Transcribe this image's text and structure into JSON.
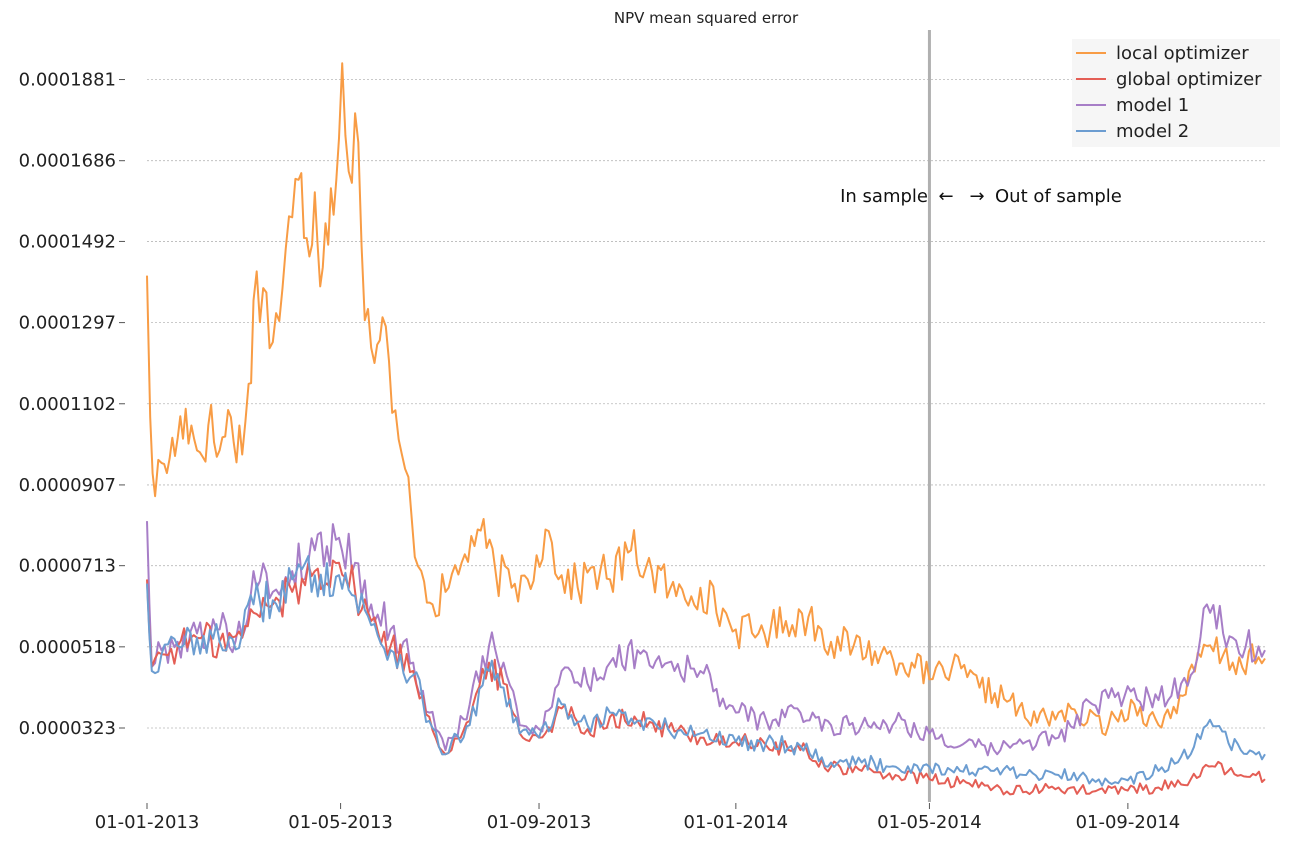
{
  "chart_data": {
    "type": "line",
    "title": "NPV mean squared error",
    "xlabel": "",
    "ylabel": "",
    "x_range": [
      "2013-01-01",
      "2014-11-25"
    ],
    "ylim": [
      1.5e-05,
      0.0002
    ],
    "grid": "horizontal dashed",
    "legend_position": "top-right",
    "x_ticks": [
      {
        "date": "2013-01-01",
        "label": "01-01-2013"
      },
      {
        "date": "2013-05-01",
        "label": "01-05-2013"
      },
      {
        "date": "2013-09-01",
        "label": "01-09-2013"
      },
      {
        "date": "2014-01-01",
        "label": "01-01-2014"
      },
      {
        "date": "2014-05-01",
        "label": "01-05-2014"
      },
      {
        "date": "2014-09-01",
        "label": "01-09-2014"
      }
    ],
    "y_ticks": [
      {
        "value": 3.23e-05,
        "label": "0.0000323"
      },
      {
        "value": 5.18e-05,
        "label": "0.0000518"
      },
      {
        "value": 7.13e-05,
        "label": "0.0000713"
      },
      {
        "value": 9.07e-05,
        "label": "0.0000907"
      },
      {
        "value": 0.0001102,
        "label": "0.0001102"
      },
      {
        "value": 0.0001297,
        "label": "0.0001297"
      },
      {
        "value": 0.0001492,
        "label": "0.0001492"
      },
      {
        "value": 0.0001686,
        "label": "0.0001686"
      },
      {
        "value": 0.0001881,
        "label": "0.0001881"
      }
    ],
    "vline": {
      "date": "2014-05-01",
      "color": "#b0b0b0"
    },
    "annotation": {
      "left": "In sample",
      "left_arrow": "←",
      "right_arrow": "→",
      "right": "Out of sample"
    },
    "series": [
      {
        "name": "local optimizer",
        "color": "#f89c45",
        "points": [
          [
            "2013-01-01",
            0.000141
          ],
          [
            "2013-01-03",
            0.000107
          ],
          [
            "2013-01-06",
            8.8e-05
          ],
          [
            "2013-01-10",
            9.6e-05
          ],
          [
            "2013-01-15",
            9.7e-05
          ],
          [
            "2013-01-20",
            0.000102
          ],
          [
            "2013-01-25",
            0.000109
          ],
          [
            "2013-02-01",
            9.9e-05
          ],
          [
            "2013-02-08",
            0.000105
          ],
          [
            "2013-02-15",
            9.9e-05
          ],
          [
            "2013-02-22",
            0.000107
          ],
          [
            "2013-03-01",
            9.8e-05
          ],
          [
            "2013-03-05",
            0.000115
          ],
          [
            "2013-03-08",
            0.000135
          ],
          [
            "2013-03-14",
            0.000138
          ],
          [
            "2013-03-20",
            0.000125
          ],
          [
            "2013-03-26",
            0.000138
          ],
          [
            "2013-04-01",
            0.000155
          ],
          [
            "2013-04-05",
            0.000164
          ],
          [
            "2013-04-10",
            0.00015
          ],
          [
            "2013-04-15",
            0.000161
          ],
          [
            "2013-04-20",
            0.000143
          ],
          [
            "2013-04-25",
            0.000162
          ],
          [
            "2013-04-30",
            0.000174
          ],
          [
            "2013-05-02",
            0.000192
          ],
          [
            "2013-05-06",
            0.000166
          ],
          [
            "2013-05-10",
            0.00018
          ],
          [
            "2013-05-14",
            0.000148
          ],
          [
            "2013-05-18",
            0.000133
          ],
          [
            "2013-05-22",
            0.00012
          ],
          [
            "2013-05-27",
            0.000131
          ],
          [
            "2013-06-02",
            0.000108
          ],
          [
            "2013-06-08",
            9.8e-05
          ],
          [
            "2013-06-14",
            8.3e-05
          ],
          [
            "2013-06-20",
            7e-05
          ],
          [
            "2013-06-27",
            6.2e-05
          ],
          [
            "2013-07-05",
            6.5e-05
          ],
          [
            "2013-07-15",
            7.2e-05
          ],
          [
            "2013-07-25",
            8e-05
          ],
          [
            "2013-08-05",
            7e-05
          ],
          [
            "2013-08-15",
            6.6e-05
          ],
          [
            "2013-08-25",
            6.8e-05
          ],
          [
            "2013-09-05",
            8e-05
          ],
          [
            "2013-09-15",
            6.9e-05
          ],
          [
            "2013-09-25",
            6.6e-05
          ],
          [
            "2013-10-05",
            7.1e-05
          ],
          [
            "2013-10-15",
            6.8e-05
          ],
          [
            "2013-10-28",
            7.5e-05
          ],
          [
            "2013-11-10",
            7e-05
          ],
          [
            "2013-11-25",
            6.4e-05
          ],
          [
            "2013-12-10",
            6.6e-05
          ],
          [
            "2014-01-01",
            5.6e-05
          ],
          [
            "2014-01-15",
            5.5e-05
          ],
          [
            "2014-02-01",
            5.8e-05
          ],
          [
            "2014-02-15",
            5.9e-05
          ],
          [
            "2014-03-01",
            5.3e-05
          ],
          [
            "2014-03-15",
            5.2e-05
          ],
          [
            "2014-04-01",
            5e-05
          ],
          [
            "2014-04-20",
            4.8e-05
          ],
          [
            "2014-05-01",
            4.4e-05
          ],
          [
            "2014-05-15",
            4.7e-05
          ],
          [
            "2014-06-01",
            4.2e-05
          ],
          [
            "2014-06-20",
            3.9e-05
          ],
          [
            "2014-07-01",
            3.4e-05
          ],
          [
            "2014-07-20",
            3.6e-05
          ],
          [
            "2014-08-01",
            3.5e-05
          ],
          [
            "2014-08-20",
            3.3e-05
          ],
          [
            "2014-09-05",
            3.8e-05
          ],
          [
            "2014-09-20",
            3.3e-05
          ],
          [
            "2014-10-05",
            4e-05
          ],
          [
            "2014-10-20",
            5.2e-05
          ],
          [
            "2014-11-05",
            4.8e-05
          ],
          [
            "2014-11-25",
            4.9e-05
          ]
        ]
      },
      {
        "name": "global optimizer",
        "color": "#e45e55",
        "points": [
          [
            "2013-01-01",
            6.8e-05
          ],
          [
            "2013-01-04",
            4.7e-05
          ],
          [
            "2013-01-10",
            5e-05
          ],
          [
            "2013-01-20",
            5.2e-05
          ],
          [
            "2013-02-01",
            5.4e-05
          ],
          [
            "2013-02-15",
            5.3e-05
          ],
          [
            "2013-03-01",
            5.4e-05
          ],
          [
            "2013-03-08",
            6e-05
          ],
          [
            "2013-03-20",
            6.2e-05
          ],
          [
            "2013-04-01",
            6.5e-05
          ],
          [
            "2013-04-15",
            7e-05
          ],
          [
            "2013-04-30",
            7.2e-05
          ],
          [
            "2013-05-10",
            6.5e-05
          ],
          [
            "2013-05-20",
            5.8e-05
          ],
          [
            "2013-06-01",
            5.2e-05
          ],
          [
            "2013-06-15",
            4.6e-05
          ],
          [
            "2013-06-25",
            3.5e-05
          ],
          [
            "2013-07-05",
            2.6e-05
          ],
          [
            "2013-07-20",
            3.4e-05
          ],
          [
            "2013-08-01",
            4.8e-05
          ],
          [
            "2013-08-10",
            4.3e-05
          ],
          [
            "2013-08-20",
            3.1e-05
          ],
          [
            "2013-09-01",
            3e-05
          ],
          [
            "2013-09-15",
            3.7e-05
          ],
          [
            "2013-10-01",
            3.2e-05
          ],
          [
            "2013-10-15",
            3.5e-05
          ],
          [
            "2013-11-01",
            3.4e-05
          ],
          [
            "2013-11-20",
            3.2e-05
          ],
          [
            "2013-12-10",
            3e-05
          ],
          [
            "2014-01-01",
            2.9e-05
          ],
          [
            "2014-01-20",
            2.8e-05
          ],
          [
            "2014-02-10",
            2.7e-05
          ],
          [
            "2014-03-01",
            2.3e-05
          ],
          [
            "2014-03-20",
            2.2e-05
          ],
          [
            "2014-04-10",
            2.1e-05
          ],
          [
            "2014-05-01",
            2e-05
          ],
          [
            "2014-05-20",
            1.9e-05
          ],
          [
            "2014-06-10",
            1.8e-05
          ],
          [
            "2014-06-30",
            1.7e-05
          ],
          [
            "2014-07-20",
            1.8e-05
          ],
          [
            "2014-08-10",
            1.7e-05
          ],
          [
            "2014-08-30",
            1.75e-05
          ],
          [
            "2014-09-20",
            1.8e-05
          ],
          [
            "2014-10-10",
            2e-05
          ],
          [
            "2014-10-25",
            2.3e-05
          ],
          [
            "2014-11-10",
            2.1e-05
          ],
          [
            "2014-11-25",
            2e-05
          ]
        ]
      },
      {
        "name": "model 1",
        "color": "#a77ec7",
        "points": [
          [
            "2013-01-01",
            8.2e-05
          ],
          [
            "2013-01-04",
            4.7e-05
          ],
          [
            "2013-01-10",
            5.1e-05
          ],
          [
            "2013-01-20",
            5.3e-05
          ],
          [
            "2013-02-01",
            5.5e-05
          ],
          [
            "2013-02-15",
            5.6e-05
          ],
          [
            "2013-03-01",
            5.4e-05
          ],
          [
            "2013-03-08",
            7e-05
          ],
          [
            "2013-03-20",
            6.5e-05
          ],
          [
            "2013-04-01",
            7e-05
          ],
          [
            "2013-04-15",
            7.5e-05
          ],
          [
            "2013-04-30",
            7.8e-05
          ],
          [
            "2013-05-10",
            7.2e-05
          ],
          [
            "2013-05-20",
            6.2e-05
          ],
          [
            "2013-06-01",
            5.6e-05
          ],
          [
            "2013-06-15",
            4.8e-05
          ],
          [
            "2013-06-25",
            3.6e-05
          ],
          [
            "2013-07-05",
            2.7e-05
          ],
          [
            "2013-07-20",
            3.8e-05
          ],
          [
            "2013-08-01",
            5.2e-05
          ],
          [
            "2013-08-10",
            4.8e-05
          ],
          [
            "2013-08-20",
            3.3e-05
          ],
          [
            "2013-09-01",
            3.2e-05
          ],
          [
            "2013-09-15",
            4.6e-05
          ],
          [
            "2013-10-01",
            4.3e-05
          ],
          [
            "2013-10-15",
            4.8e-05
          ],
          [
            "2013-11-01",
            5.1e-05
          ],
          [
            "2013-11-20",
            4.8e-05
          ],
          [
            "2013-12-10",
            4.6e-05
          ],
          [
            "2014-01-01",
            3.6e-05
          ],
          [
            "2014-01-20",
            3.4e-05
          ],
          [
            "2014-02-10",
            3.6e-05
          ],
          [
            "2014-03-01",
            3.3e-05
          ],
          [
            "2014-03-20",
            3.3e-05
          ],
          [
            "2014-04-10",
            3.4e-05
          ],
          [
            "2014-05-01",
            3.1e-05
          ],
          [
            "2014-05-20",
            2.8e-05
          ],
          [
            "2014-06-10",
            2.7e-05
          ],
          [
            "2014-06-30",
            2.9e-05
          ],
          [
            "2014-07-20",
            3e-05
          ],
          [
            "2014-08-10",
            3.8e-05
          ],
          [
            "2014-08-30",
            4e-05
          ],
          [
            "2014-09-20",
            3.9e-05
          ],
          [
            "2014-10-10",
            4.5e-05
          ],
          [
            "2014-10-20",
            6.2e-05
          ],
          [
            "2014-11-05",
            5.4e-05
          ],
          [
            "2014-11-25",
            5.1e-05
          ]
        ]
      },
      {
        "name": "model 2",
        "color": "#6c9dd1",
        "points": [
          [
            "2013-01-01",
            6.7e-05
          ],
          [
            "2013-01-04",
            4.6e-05
          ],
          [
            "2013-01-10",
            5e-05
          ],
          [
            "2013-01-20",
            5.2e-05
          ],
          [
            "2013-02-01",
            5.4e-05
          ],
          [
            "2013-02-15",
            5.3e-05
          ],
          [
            "2013-03-01",
            5.5e-05
          ],
          [
            "2013-03-08",
            6.2e-05
          ],
          [
            "2013-03-20",
            6.3e-05
          ],
          [
            "2013-04-01",
            6.8e-05
          ],
          [
            "2013-04-15",
            6.9e-05
          ],
          [
            "2013-04-30",
            6.9e-05
          ],
          [
            "2013-05-10",
            6.4e-05
          ],
          [
            "2013-05-20",
            5.7e-05
          ],
          [
            "2013-06-01",
            5.1e-05
          ],
          [
            "2013-06-15",
            4.5e-05
          ],
          [
            "2013-06-25",
            3.4e-05
          ],
          [
            "2013-07-05",
            2.6e-05
          ],
          [
            "2013-07-20",
            3.3e-05
          ],
          [
            "2013-08-01",
            4.6e-05
          ],
          [
            "2013-08-10",
            4.2e-05
          ],
          [
            "2013-08-20",
            3.1e-05
          ],
          [
            "2013-09-01",
            3e-05
          ],
          [
            "2013-09-15",
            3.8e-05
          ],
          [
            "2013-10-01",
            3.3e-05
          ],
          [
            "2013-10-15",
            3.6e-05
          ],
          [
            "2013-11-01",
            3.4e-05
          ],
          [
            "2013-11-20",
            3.2e-05
          ],
          [
            "2013-12-10",
            3.1e-05
          ],
          [
            "2014-01-01",
            2.9e-05
          ],
          [
            "2014-01-20",
            2.9e-05
          ],
          [
            "2014-02-10",
            2.8e-05
          ],
          [
            "2014-03-01",
            2.4e-05
          ],
          [
            "2014-03-20",
            2.4e-05
          ],
          [
            "2014-04-10",
            2.3e-05
          ],
          [
            "2014-05-01",
            2.3e-05
          ],
          [
            "2014-05-20",
            2.2e-05
          ],
          [
            "2014-06-10",
            2.2e-05
          ],
          [
            "2014-06-30",
            2.1e-05
          ],
          [
            "2014-07-20",
            2.1e-05
          ],
          [
            "2014-08-10",
            2e-05
          ],
          [
            "2014-08-30",
            2e-05
          ],
          [
            "2014-09-20",
            2.2e-05
          ],
          [
            "2014-10-10",
            2.6e-05
          ],
          [
            "2014-10-20",
            3.3e-05
          ],
          [
            "2014-11-10",
            2.7e-05
          ],
          [
            "2014-11-25",
            2.6e-05
          ]
        ]
      }
    ]
  }
}
